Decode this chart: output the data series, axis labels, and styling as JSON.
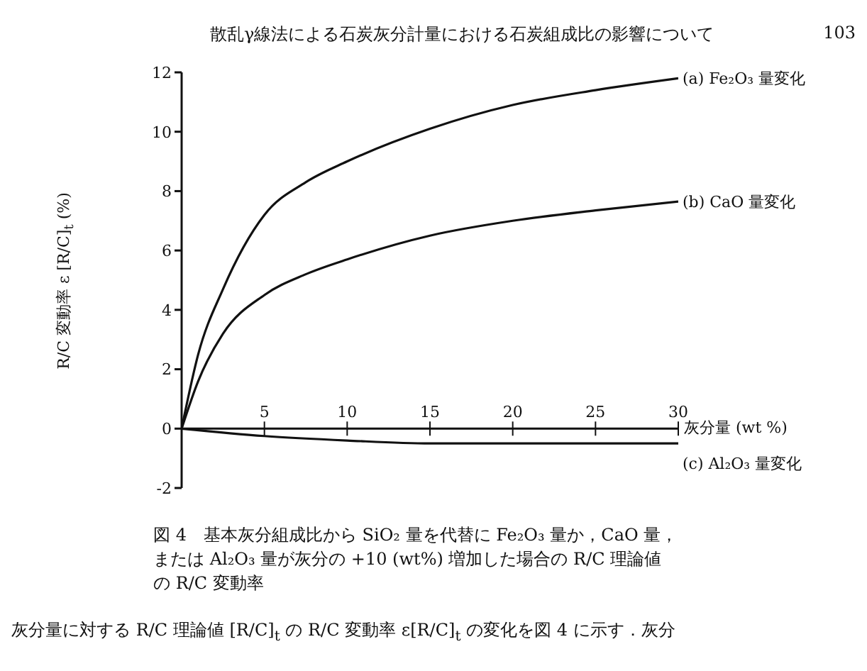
{
  "chart_data": {
    "type": "line",
    "title": "図 4　基本灰分組成比から SiO₂ 量を代替に Fe₂O₃ 量か，CaO 量，または Al₂O₃ 量が灰分の +10 (wt%) 増加した場合の R/C 理論値の R/C 変動率",
    "xlabel": "灰分量 (wt %)",
    "ylabel": "R/C 変動率 ε [R/C]$_{t}$ (%)",
    "annotations": [
      "散乱γ線法による石炭灰分計量における石炭組成比の影響について",
      "103",
      "灰分量に対する R/C 理論値 [R/C]$_{t}$ の R/C 変動率 ε[R/C]$_{t}$ の変化を図 4 に示す．灰分"
    ],
    "xlim": [
      0,
      30
    ],
    "xticks": [
      5,
      10,
      15,
      20,
      25,
      30
    ],
    "ylim": [
      -2,
      12
    ],
    "yticks": [
      -2,
      0,
      2,
      4,
      6,
      8,
      10,
      12
    ],
    "grid": false,
    "marker": "none",
    "line_style": "solid",
    "series": [
      {
        "name": "(a) Fe₂O₃ 量変化",
        "color": "#111111",
        "x": [
          0,
          1,
          2.5,
          5,
          7.5,
          10,
          15,
          20,
          25,
          30
        ],
        "values": [
          0,
          2.5,
          4.7,
          7.2,
          8.3,
          9.0,
          10.1,
          10.9,
          11.4,
          11.8
        ]
      },
      {
        "name": "(b) CaO 量変化",
        "color": "#111111",
        "x": [
          0,
          1,
          2.5,
          5,
          7.5,
          10,
          15,
          20,
          25,
          30
        ],
        "values": [
          0,
          1.6,
          3.2,
          4.5,
          5.2,
          5.7,
          6.5,
          7.0,
          7.35,
          7.65
        ]
      },
      {
        "name": "(c) Al₂O₃ 量変化",
        "color": "#111111",
        "x": [
          0,
          5,
          10,
          15,
          20,
          25,
          30
        ],
        "values": [
          0,
          -0.25,
          -0.4,
          -0.5,
          -0.5,
          -0.5,
          -0.5
        ]
      }
    ]
  }
}
